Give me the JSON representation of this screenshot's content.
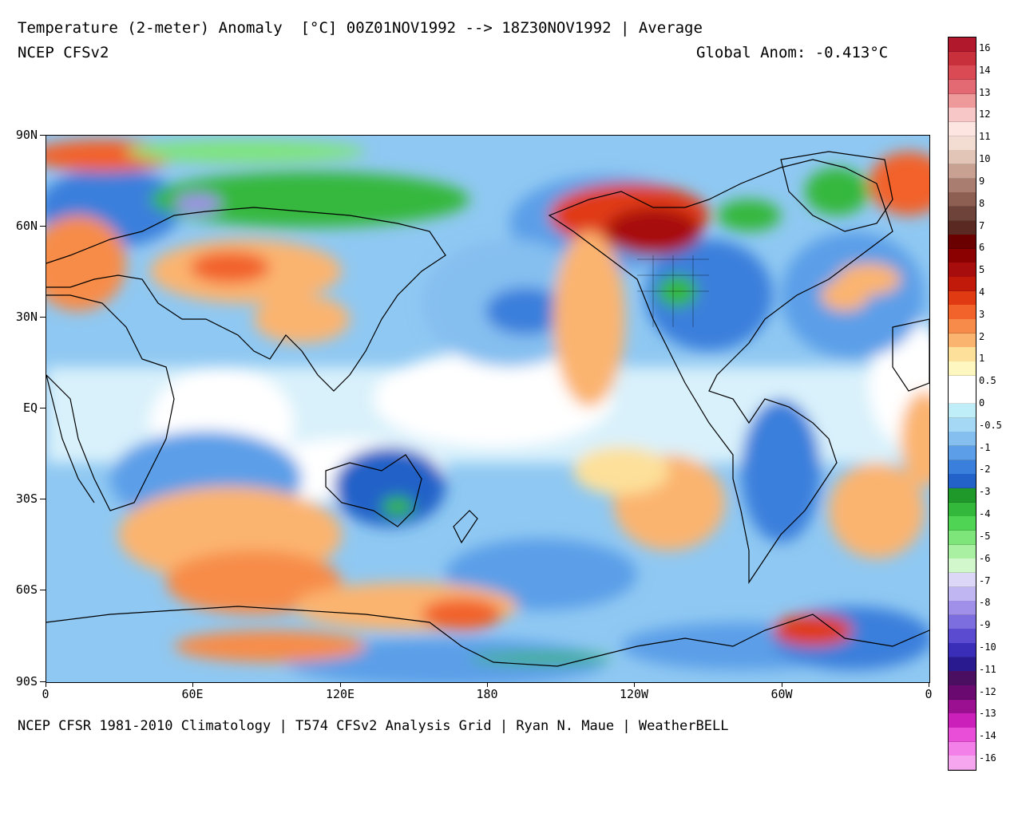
{
  "header": {
    "title": "Temperature (2-meter) Anomaly  [°C] 00Z01NOV1992 --> 18Z30NOV1992 | Average",
    "model": "NCEP CFSv2",
    "global_anomaly": "Global Anom: -0.413°C"
  },
  "footer": {
    "credit": "NCEP CFSR 1981-2010 Climatology | T574 CFSv2 Analysis Grid | Ryan N. Maue | WeatherBELL"
  },
  "axes": {
    "lat_labels": [
      "90N",
      "60N",
      "30N",
      "EQ",
      "30S",
      "60S",
      "90S"
    ],
    "lon_labels": [
      "0",
      "60E",
      "120E",
      "180",
      "120W",
      "60W",
      "0"
    ]
  },
  "colorbar": {
    "labels": [
      "16",
      "14",
      "13",
      "12",
      "11",
      "10",
      "9",
      "8",
      "7",
      "6",
      "5",
      "4",
      "3",
      "2",
      "1",
      "0.5",
      "0",
      "-0.5",
      "-1",
      "-2",
      "-3",
      "-4",
      "-5",
      "-6",
      "-7",
      "-8",
      "-9",
      "-10",
      "-11",
      "-12",
      "-13",
      "-14",
      "-16"
    ],
    "colors": [
      "#b2182b",
      "#c8303c",
      "#d94a55",
      "#e36a72",
      "#ef9a9a",
      "#f7c6c6",
      "#fde6e2",
      "#f3ddd3",
      "#e3c5b8",
      "#c9a193",
      "#a97d6f",
      "#8c5f52",
      "#6e4339",
      "#5a2a22",
      "#6b0000",
      "#8b0000",
      "#a80d0d",
      "#c21a0a",
      "#e03a12",
      "#f2622b",
      "#f78c4a",
      "#fbb46f",
      "#fde09a",
      "#fff7c0",
      "#ffffff",
      "#ffffff",
      "#bfeef8",
      "#a5d8f5",
      "#85bff0",
      "#5c9fe8",
      "#3a7fdc",
      "#2362c8",
      "#1f9a2a",
      "#34b83c",
      "#4fd454",
      "#7ee57a",
      "#aaf0a2",
      "#d3f7cd",
      "#dcd7f7",
      "#c0b6f2",
      "#a090ea",
      "#7d6ee0",
      "#5a4bd0",
      "#3a2eb8",
      "#2a1a90",
      "#4a0f60",
      "#6a0a70",
      "#9a1090",
      "#cc20bb",
      "#e84ed8",
      "#f37fe8",
      "#f6a6ef"
    ]
  }
}
